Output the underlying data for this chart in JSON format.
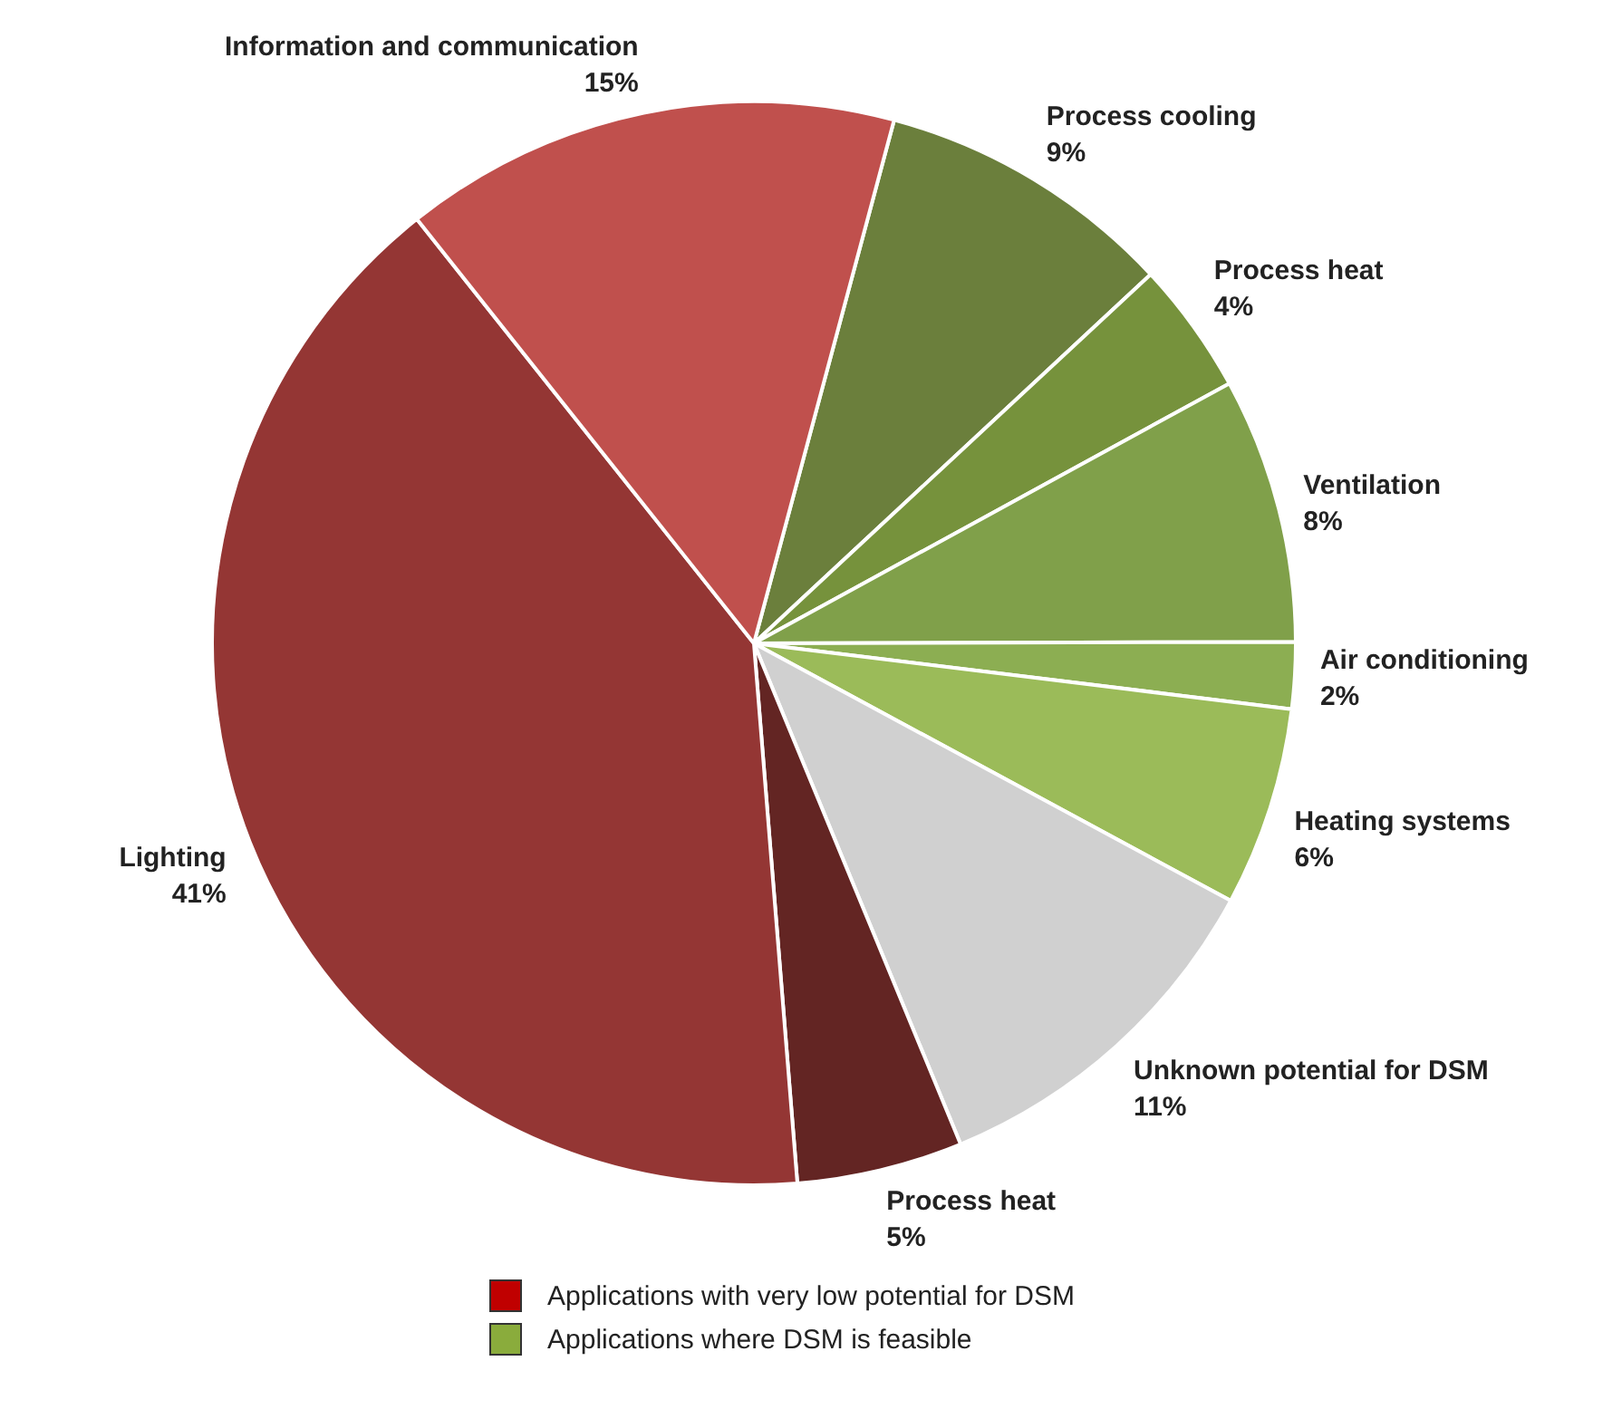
{
  "chart_data": {
    "type": "pie",
    "categories": [
      "Process cooling",
      "Process heat",
      "Ventilation",
      "Air conditioning",
      "Heating systems",
      "Unknown potential for DSM",
      "Process heat",
      "Lighting",
      "Information and communication"
    ],
    "values": [
      9,
      4,
      8,
      2,
      6,
      11,
      5,
      41,
      15
    ],
    "value_labels": [
      "9%",
      "4%",
      "8%",
      "2%",
      "6%",
      "11%",
      "5%",
      "41%",
      "15%"
    ],
    "colors": [
      "#6b7f3c",
      "#76923c",
      "#80a04a",
      "#8cae52",
      "#9bbb59",
      "#d0d0d0",
      "#632523",
      "#943634",
      "#c0504d"
    ],
    "annotations": [
      "Applications with very low potential for DSM",
      "Applications where DSM is feasible"
    ],
    "legend": false
  }
}
